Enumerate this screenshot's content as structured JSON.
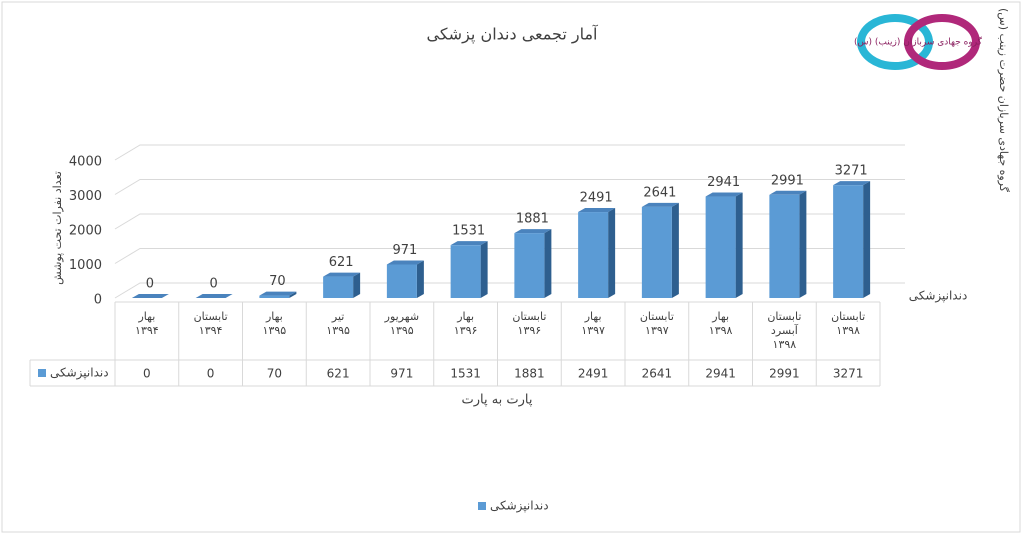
{
  "logo_text": "گروه جهادی سربازان (زینب) (س)",
  "side_text": "گروه جهادی سربازان حضرت زینب (س)",
  "chart_data": {
    "type": "bar3d",
    "title": "آمار تجمعی دندان پزشکی",
    "y_label": "تعداد نفرات تحت پوشش",
    "x_label": "پارت به پارت",
    "categories": [
      "بهار\n۱۳۹۴",
      "تابستان\n۱۳۹۴",
      "بهار\n۱۳۹۵",
      "تیر\n۱۳۹۵",
      "شهریور\n۱۳۹۵",
      "بهار\n۱۳۹۶",
      "تابستان\n۱۳۹۶",
      "بهار\n۱۳۹۷",
      "تابستان\n۱۳۹۷",
      "بهار\n۱۳۹۸",
      "تابستان\nآبسرد\n۱۳۹۸",
      "تابستان\n۱۳۹۸"
    ],
    "series": [
      {
        "name": "دندانپزشکی",
        "color": "#5b9bd5",
        "values": [
          0,
          0,
          70,
          621,
          971,
          1531,
          1881,
          2491,
          2641,
          2941,
          2991,
          3271
        ]
      }
    ],
    "ylim": [
      0,
      4000
    ],
    "yticks": [
      0,
      1000,
      2000,
      3000,
      4000
    ],
    "grid": true,
    "data_table": true,
    "legend": "bottom"
  }
}
